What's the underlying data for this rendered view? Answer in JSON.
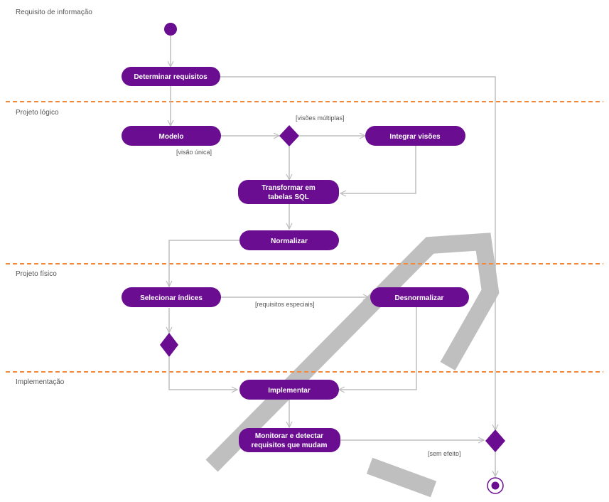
{
  "colors": {
    "node": "#6a0d91",
    "edge": "#bdbdbd",
    "divider": "#f08a3c",
    "watermark": "#8a8a8a"
  },
  "lanes": [
    {
      "id": "requisito",
      "label": "Requisito de informação"
    },
    {
      "id": "logico",
      "label": "Projeto lógico"
    },
    {
      "id": "fisico",
      "label": "Projeto físico"
    },
    {
      "id": "implementacao",
      "label": "Implementação"
    }
  ],
  "activities": {
    "determinar": "Determinar requisitos",
    "modelo": "Modelo",
    "integrar": "Integrar visões",
    "transformar_1": "Transformar em",
    "transformar_2": "tabelas SQL",
    "normalizar": "Normalizar",
    "selecionar": "Selecionar índices",
    "desnormalizar": "Desnormalizar",
    "implementar": "Implementar",
    "monitorar_1": "Monitorar e detectar",
    "monitorar_2": "requisitos que mudam"
  },
  "guards": {
    "visoes_multiplas": "[visões múltiplas]",
    "visao_unica": "[visão única]",
    "requisitos_especiais": "[requisitos especiais]",
    "sem_efeito": "[sem efeito]"
  },
  "icons": {
    "initial": "initial-node-icon",
    "final": "final-node-icon",
    "decision": "decision-diamond-icon",
    "watermark": "watermark-logo"
  }
}
